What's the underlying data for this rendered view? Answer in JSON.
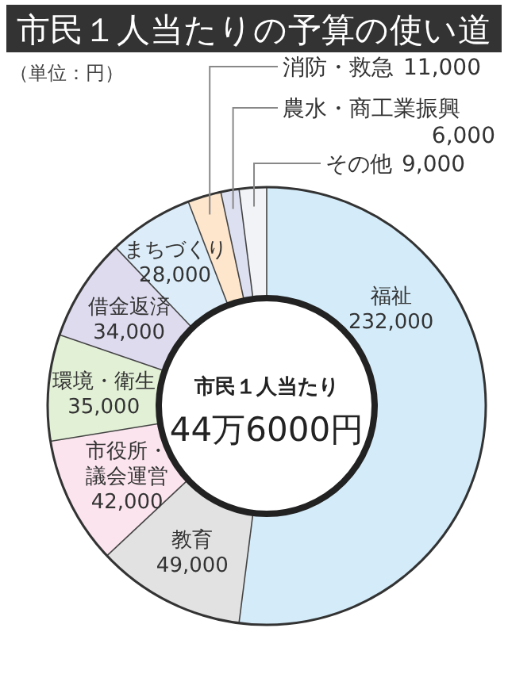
{
  "chart_data": {
    "type": "donut",
    "title": "市民１人当たりの予算の使い道",
    "subtitle": "（単位：円）",
    "categories": [
      "福祉",
      "教育",
      "市役所・議会運営",
      "環境・衛生",
      "借金返済",
      "まちづくり",
      "消防・救急",
      "農水・商工業振興",
      "その他"
    ],
    "values": [
      232000,
      49000,
      42000,
      35000,
      34000,
      28000,
      11000,
      6000,
      9000
    ],
    "value_labels": [
      "232,000",
      "49,000",
      "42,000",
      "35,000",
      "34,000",
      "28,000",
      "11,000",
      "6,000",
      "9,000"
    ],
    "colors": [
      "#d4ecfa",
      "#e2e2e2",
      "#fbe4ee",
      "#e2f0d6",
      "#dedbef",
      "#dcedf9",
      "#fde6cc",
      "#dde0f0",
      "#f1f3f6"
    ],
    "annotations": [
      "市民１人当たり",
      "44万6000円"
    ]
  }
}
